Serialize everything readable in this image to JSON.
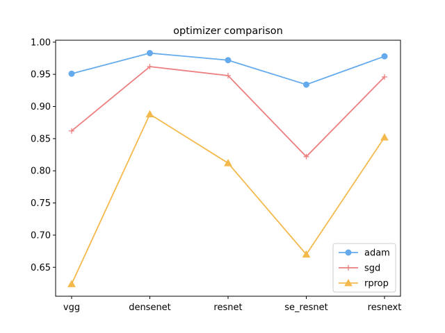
{
  "chart_data": {
    "type": "line",
    "title": "optimizer comparison",
    "xlabel": "",
    "ylabel": "",
    "categories": [
      "vgg",
      "densenet",
      "resnet",
      "se_resnet",
      "resnext"
    ],
    "ylim": [
      0.605,
      1.003
    ],
    "yticks": [
      "0.65",
      "0.70",
      "0.75",
      "0.80",
      "0.85",
      "0.90",
      "0.95",
      "1.00"
    ],
    "grid": false,
    "legend_position": "lower-right",
    "series": [
      {
        "name": "adam",
        "color": "#64aaec",
        "marker": "circle",
        "values": [
          0.951,
          0.983,
          0.972,
          0.934,
          0.978
        ]
      },
      {
        "name": "sgd",
        "color": "#ec7f7f",
        "marker": "plus",
        "values": [
          0.862,
          0.962,
          0.948,
          0.822,
          0.946
        ]
      },
      {
        "name": "rprop",
        "color": "#f4b94c",
        "marker": "triangle",
        "values": [
          0.624,
          0.888,
          0.812,
          0.67,
          0.852
        ]
      }
    ]
  }
}
